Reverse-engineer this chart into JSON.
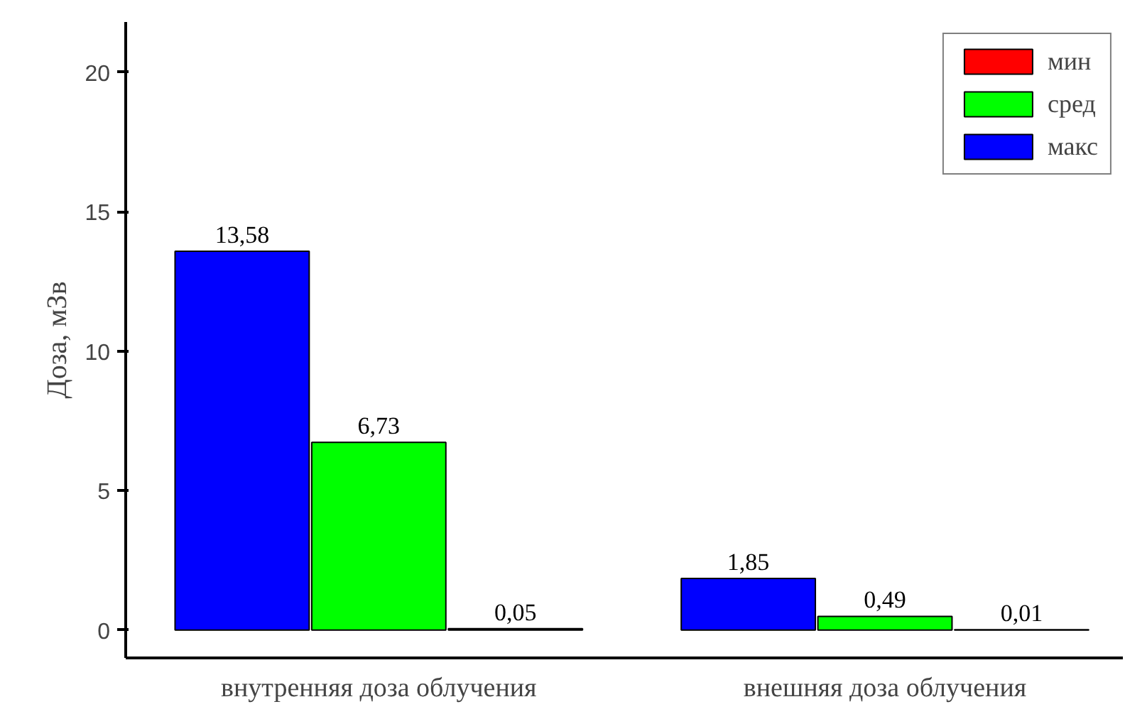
{
  "chart_data": {
    "type": "bar",
    "ylabel": "Доза, мЗв",
    "categories": [
      "внутренняя доза облучения",
      "внешняя доза облучения"
    ],
    "series": [
      {
        "name": "макс",
        "color": "#0000ff",
        "values": [
          13.58,
          1.85
        ],
        "value_labels": [
          "13,58",
          "1,85"
        ]
      },
      {
        "name": "сред",
        "color": "#00ff00",
        "values": [
          6.73,
          0.49
        ],
        "value_labels": [
          "6,73",
          "0,49"
        ]
      },
      {
        "name": "мин",
        "color": "#ff0000",
        "values": [
          0.05,
          0.01
        ],
        "value_labels": [
          "0,05",
          "0,01"
        ]
      }
    ],
    "ylim": [
      -1,
      21.8
    ],
    "yticks": [
      0,
      5,
      10,
      15,
      20
    ],
    "grid": false,
    "legend": "top right"
  }
}
